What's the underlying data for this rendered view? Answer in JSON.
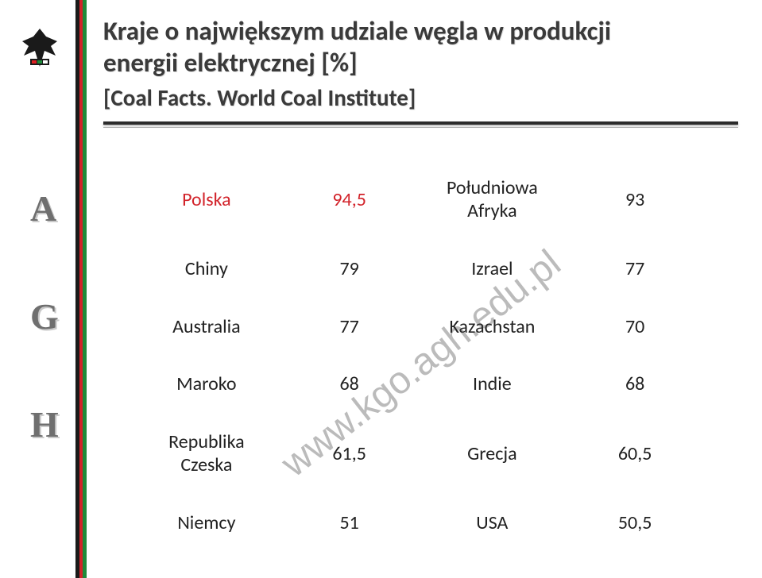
{
  "stripe_colors": [
    "#1a1a1a",
    "#d2232a",
    "#1e8b3a"
  ],
  "agh_letters": [
    "A",
    "G",
    "H"
  ],
  "title_line1": "Kraje o największym udziale węgla w produkcji",
  "title_line2": "energii elektrycznej [%]",
  "subtitle": "[Coal Facts. World Coal Institute]",
  "watermark": "www.kgo.agh.edu.pl",
  "table": {
    "rows": [
      {
        "c1": "Polska",
        "v1": "94,5",
        "c2": "Południowa\nAfryka",
        "v2": "93",
        "highlight": true
      },
      {
        "c1": "Chiny",
        "v1": "79",
        "c2": "Izrael",
        "v2": "77",
        "highlight": false
      },
      {
        "c1": "Australia",
        "v1": "77",
        "c2": "Kazachstan",
        "v2": "70",
        "highlight": false
      },
      {
        "c1": "Maroko",
        "v1": "68",
        "c2": "Indie",
        "v2": "68",
        "highlight": false
      },
      {
        "c1": "Republika\nCzeska",
        "v1": "61,5",
        "c2": "Grecja",
        "v2": "60,5",
        "highlight": false
      },
      {
        "c1": "Niemcy",
        "v1": "51",
        "c2": "USA",
        "v2": "50,5",
        "highlight": false
      }
    ],
    "font_size": 24,
    "highlight_color": "#d2232a",
    "text_color": "#222222"
  }
}
